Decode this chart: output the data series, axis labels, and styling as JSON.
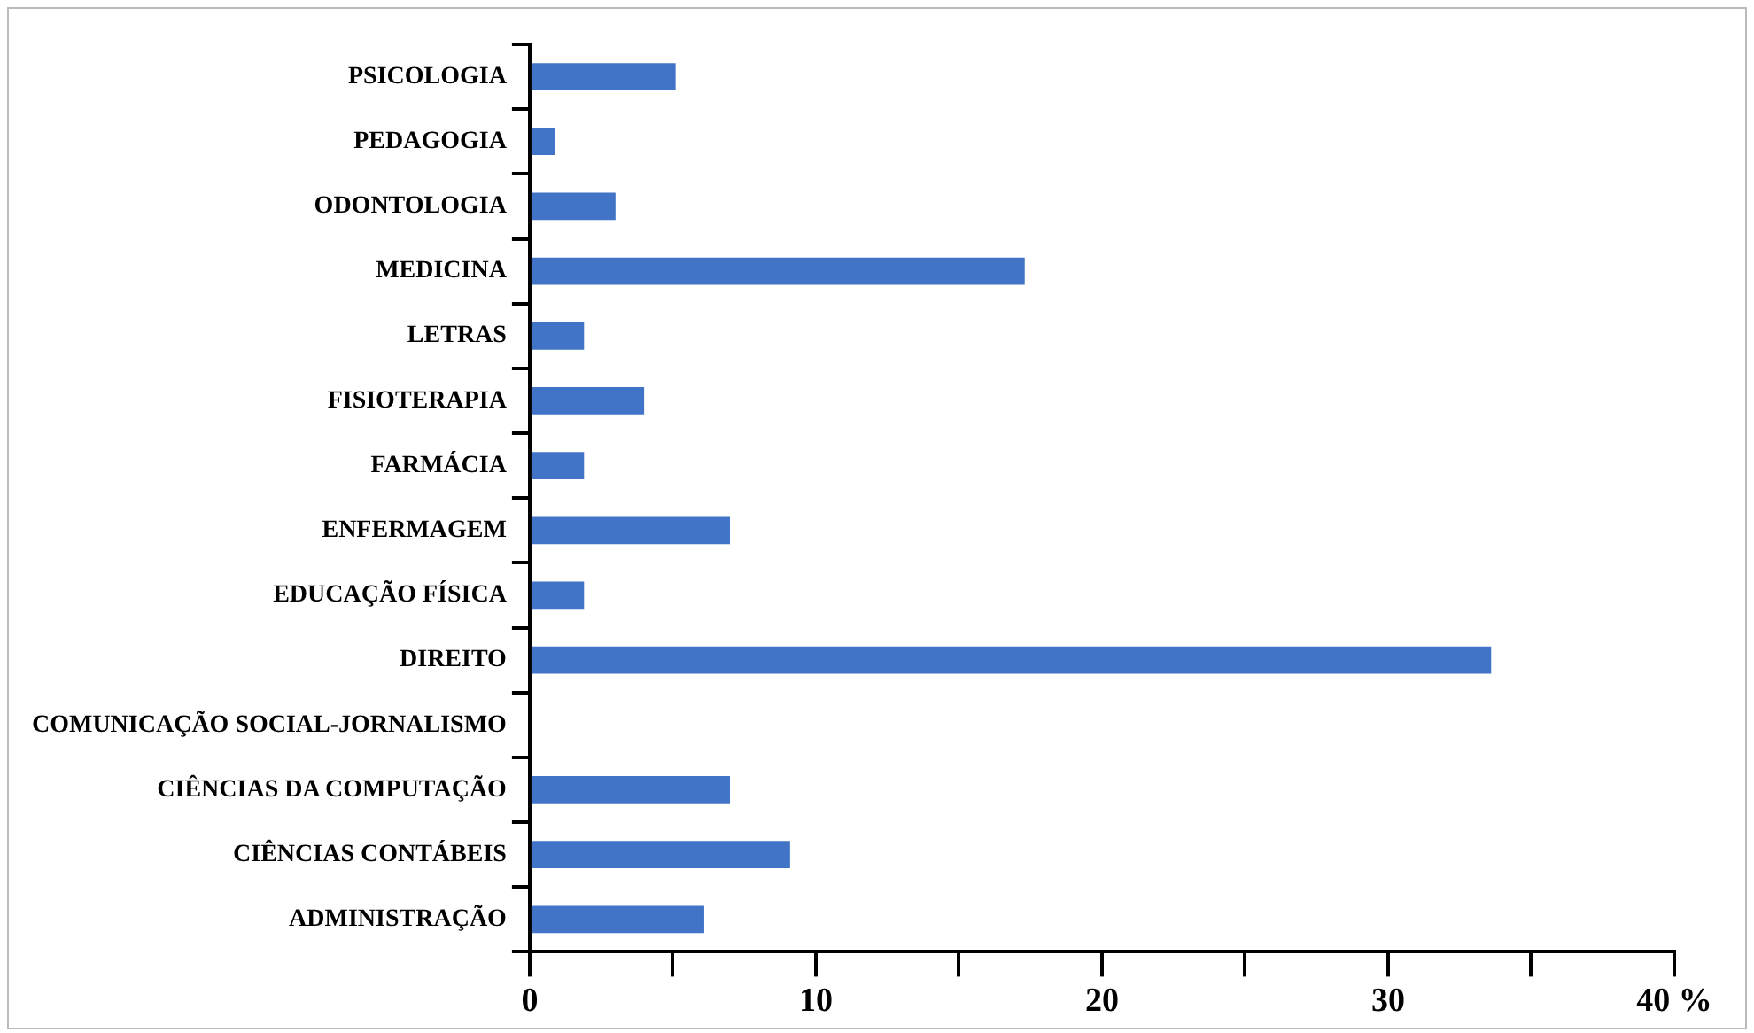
{
  "chart_data": {
    "type": "bar",
    "orientation": "horizontal",
    "categories": [
      "PSICOLOGIA",
      "PEDAGOGIA",
      "ODONTOLOGIA",
      "MEDICINA",
      "LETRAS",
      "FISIOTERAPIA",
      "FARMÁCIA",
      "ENFERMAGEM",
      "EDUCAÇÃO FÍSICA",
      "DIREITO",
      "COMUNICAÇÃO SOCIAL-JORNALISMO",
      "CIÊNCIAS DA COMPUTAÇÃO",
      "CIÊNCIAS CONTÁBEIS",
      "ADMINISTRAÇÃO"
    ],
    "values": [
      5.1,
      0.9,
      3.0,
      17.3,
      1.9,
      4.0,
      1.9,
      7.0,
      1.9,
      33.6,
      0,
      7.0,
      9.1,
      6.1
    ],
    "color": "#4174c6",
    "xlim": [
      0,
      40
    ],
    "xticks": [
      0,
      {
        "value": 5,
        "label": null
      },
      10,
      {
        "value": 15,
        "label": null
      },
      20,
      {
        "value": 25,
        "label": null
      },
      30,
      {
        "value": 35,
        "label": null
      },
      {
        "value": 40,
        "label": "40 %"
      }
    ],
    "grid": false,
    "legend": false
  }
}
